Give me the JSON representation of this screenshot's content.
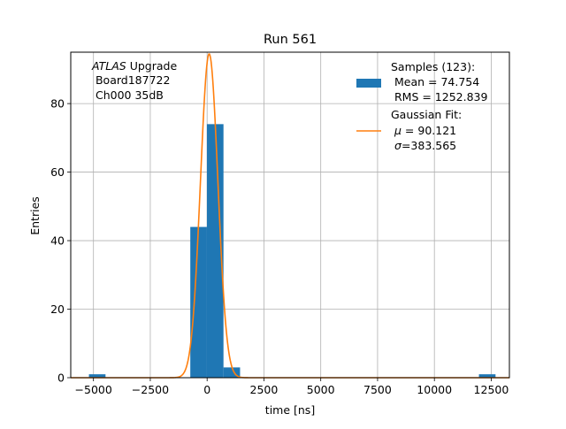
{
  "chart_data": {
    "type": "bar",
    "title": "Run 561",
    "xlabel": "time [ns]",
    "ylabel": "Entries",
    "xlim": [
      -6000,
      13300
    ],
    "ylim": [
      0,
      95
    ],
    "grid": true,
    "xticks": [
      -5000,
      -2500,
      0,
      2500,
      5000,
      7500,
      10000,
      12500
    ],
    "xtick_labels": [
      "−5000",
      "−2500",
      "0",
      "2500",
      "5000",
      "7500",
      "10000",
      "12500"
    ],
    "yticks": [
      0,
      20,
      40,
      60,
      80
    ],
    "ytick_labels": [
      "0",
      "20",
      "40",
      "60",
      "80"
    ],
    "histogram": {
      "name": "Samples (123):",
      "color": "#1f77b4",
      "bins": [
        {
          "x0": -5200,
          "x1": -4470,
          "count": 1
        },
        {
          "x0": -740,
          "x1": -10,
          "count": 44
        },
        {
          "x0": -10,
          "x1": 720,
          "count": 74
        },
        {
          "x0": 720,
          "x1": 1450,
          "count": 3
        },
        {
          "x0": 11960,
          "x1": 12690,
          "count": 1
        }
      ]
    },
    "fit": {
      "name": "Gaussian Fit:",
      "color": "#ff7f0e",
      "mu": 90.121,
      "sigma": 383.565,
      "amplitude": 94.5,
      "x_range": [
        -6000,
        13300
      ]
    },
    "annotation": {
      "italic": "ATLAS",
      "line1_rest": " Upgrade",
      "line2": " Board187722",
      "line3": " Ch000 35dB"
    },
    "legend": {
      "position": "top-right",
      "samples_label": "Samples (123):",
      "samples_mean": " Mean = 74.754",
      "samples_rms": " RMS = 1252.839",
      "fit_label": "Gaussian Fit:",
      "fit_mu_symbol": "μ",
      "fit_mu_value": " = 90.121",
      "fit_sigma_symbol": "σ",
      "fit_sigma_value": "=383.565"
    }
  }
}
